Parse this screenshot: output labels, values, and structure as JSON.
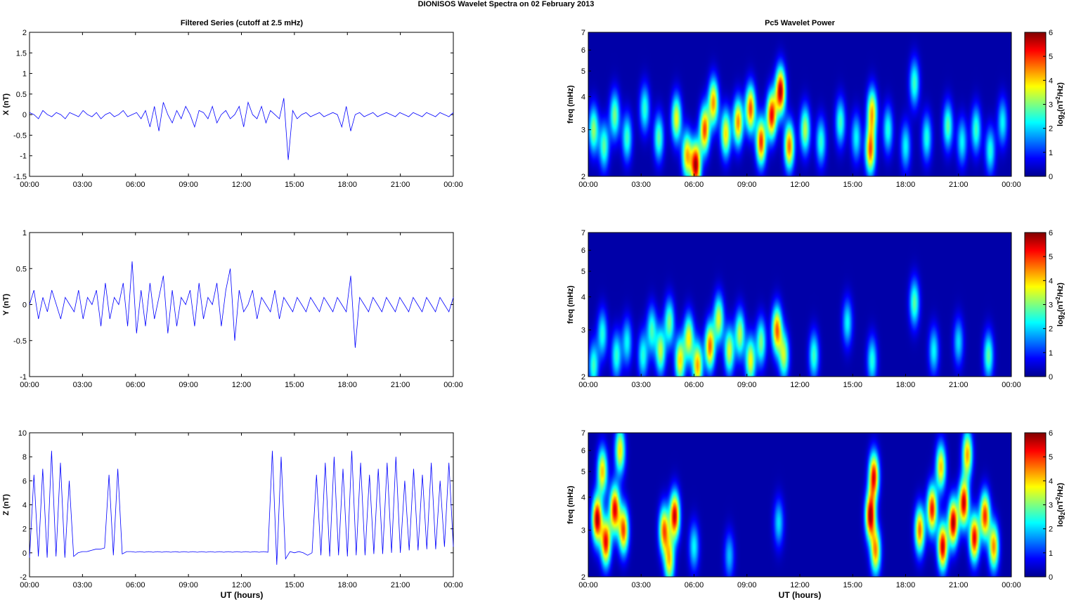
{
  "figure_title": "DIONISOS Wavelet Spectra on 02 February  2013",
  "left_title": "Filtered Series (cutoff at 2.5 mHz)",
  "right_title": "Pc5 Wavelet Power",
  "xlabel": "UT (hours)",
  "x_ticks": [
    "00:00",
    "03:00",
    "06:00",
    "09:00",
    "12:00",
    "15:00",
    "18:00",
    "21:00",
    "00:00"
  ],
  "colorbar_label": "log2(nT2/Hz)",
  "colorbar_ticks": [
    "0",
    "1",
    "2",
    "3",
    "4",
    "5",
    "6"
  ],
  "freq_label": "freq (mHz)",
  "freq_ticks": [
    "2",
    "3",
    "4",
    "5",
    "6",
    "7"
  ],
  "colors": {
    "series_line": "#0000ff",
    "spectrum_background": "#00008f"
  },
  "chart_data": [
    {
      "type": "line",
      "ylabel": "X (nT)",
      "x_range_hours": [
        0,
        24
      ],
      "ylim": [
        -1.5,
        2
      ],
      "y_ticks": [
        "2",
        "1.5",
        "1",
        "0.5",
        "0",
        "-0.5",
        "-1",
        "-1.5"
      ],
      "series": [
        {
          "values": [
            0.05,
            0.0,
            -0.1,
            0.1,
            0.0,
            -0.05,
            0.05,
            0.0,
            -0.1,
            0.05,
            0.0,
            -0.05,
            0.1,
            0.0,
            -0.05,
            0.05,
            -0.1,
            0.0,
            0.05,
            -0.05,
            0.0,
            0.1,
            -0.05,
            0.0,
            0.05,
            -0.1,
            0.1,
            -0.3,
            0.2,
            -0.4,
            0.3,
            0.0,
            -0.2,
            0.1,
            -0.1,
            0.2,
            0.0,
            -0.3,
            0.1,
            0.05,
            -0.1,
            0.2,
            -0.2,
            0.0,
            0.1,
            -0.1,
            0.0,
            0.2,
            -0.3,
            0.3,
            0.0,
            -0.1,
            0.2,
            -0.2,
            0.1,
            0.0,
            -0.1,
            0.4,
            -1.1,
            0.1,
            -0.1,
            0.0,
            0.05,
            -0.05,
            0.0,
            0.05,
            -0.05,
            0.0,
            0.05,
            0.0,
            -0.3,
            0.2,
            -0.4,
            0.0,
            0.05,
            -0.05,
            0.0,
            0.05,
            -0.05,
            0.0,
            0.05,
            0.0,
            -0.05,
            0.05,
            0.0,
            -0.05,
            0.05,
            0.0,
            -0.05,
            0.05,
            0.0,
            -0.05,
            0.05,
            0.0,
            -0.05,
            0.05
          ]
        }
      ]
    },
    {
      "type": "line",
      "ylabel": "Y (nT)",
      "x_range_hours": [
        0,
        24
      ],
      "ylim": [
        -1,
        1
      ],
      "y_ticks": [
        "1",
        "0.5",
        "0",
        "-0.5",
        "-1"
      ],
      "series": [
        {
          "values": [
            0.0,
            0.2,
            -0.2,
            0.1,
            -0.1,
            0.2,
            0.0,
            -0.2,
            0.1,
            0.0,
            -0.1,
            0.2,
            -0.2,
            0.1,
            0.0,
            0.2,
            -0.3,
            0.3,
            -0.2,
            0.1,
            0.0,
            0.3,
            -0.3,
            0.6,
            -0.4,
            0.2,
            -0.3,
            0.3,
            -0.2,
            0.1,
            0.4,
            -0.4,
            0.2,
            -0.3,
            0.1,
            0.0,
            0.2,
            -0.3,
            0.3,
            -0.2,
            0.1,
            0.0,
            0.3,
            -0.3,
            0.2,
            0.5,
            -0.5,
            0.2,
            -0.1,
            0.0,
            0.2,
            -0.2,
            0.1,
            0.0,
            -0.1,
            0.2,
            -0.2,
            0.1,
            0.0,
            -0.1,
            0.1,
            0.0,
            -0.1,
            0.1,
            0.0,
            -0.1,
            0.1,
            0.0,
            -0.1,
            0.1,
            0.0,
            -0.1,
            0.4,
            -0.6,
            0.1,
            0.0,
            -0.1,
            0.1,
            0.0,
            -0.1,
            0.1,
            0.0,
            -0.1,
            0.1,
            0.0,
            -0.1,
            0.1,
            0.0,
            -0.1,
            0.1,
            0.0,
            -0.1,
            0.1,
            0.0,
            -0.1,
            0.1
          ]
        }
      ]
    },
    {
      "type": "line",
      "ylabel": "Z (nT)",
      "x_range_hours": [
        0,
        24
      ],
      "ylim": [
        -2,
        10
      ],
      "y_ticks": [
        "10",
        "8",
        "6",
        "4",
        "2",
        "0",
        "-2"
      ],
      "series": [
        {
          "values": [
            -0.4,
            6.5,
            -0.3,
            7.0,
            -0.4,
            8.5,
            -0.3,
            7.5,
            -0.4,
            6.0,
            -0.3,
            0.0,
            0.1,
            0.1,
            0.2,
            0.3,
            0.3,
            0.4,
            6.5,
            -0.2,
            7.0,
            -0.1,
            0.1,
            0.1,
            0.05,
            0.1,
            0.05,
            0.1,
            0.05,
            0.1,
            0.05,
            0.1,
            0.05,
            0.1,
            0.05,
            0.1,
            0.05,
            0.1,
            0.05,
            0.1,
            0.05,
            0.1,
            0.05,
            0.1,
            0.05,
            0.1,
            0.05,
            0.1,
            0.05,
            0.1,
            0.05,
            0.1,
            0.05,
            0.1,
            0.05,
            8.5,
            -1.0,
            8.0,
            -0.5,
            0.1,
            0.0,
            0.1,
            0.0,
            -0.2,
            0.0,
            6.5,
            -0.2,
            7.5,
            -0.3,
            8.0,
            -0.2,
            7.0,
            -0.3,
            8.5,
            -0.2,
            7.5,
            -0.2,
            6.5,
            -0.1,
            7.0,
            -0.1,
            7.5,
            0.0,
            8.0,
            0.0,
            6.0,
            0.2,
            7.0,
            0.2,
            6.5,
            0.3,
            7.5,
            0.3,
            6.0,
            0.5,
            7.5,
            0.5
          ]
        }
      ]
    },
    {
      "type": "heatmap",
      "ylabel": "freq (mHz)",
      "x_range_hours": [
        0,
        24
      ],
      "ylim": [
        2,
        7
      ],
      "y_scale": "log",
      "color_range": [
        0,
        6
      ],
      "colormap": "jet",
      "features": [
        {
          "t": 0.3,
          "f": 3.0,
          "p": 3.2
        },
        {
          "t": 0.9,
          "f": 2.6,
          "p": 2.8
        },
        {
          "t": 1.5,
          "f": 3.4,
          "p": 3.0
        },
        {
          "t": 2.2,
          "f": 2.8,
          "p": 2.6
        },
        {
          "t": 3.2,
          "f": 3.6,
          "p": 2.5
        },
        {
          "t": 4.0,
          "f": 2.8,
          "p": 2.8
        },
        {
          "t": 5.0,
          "f": 3.3,
          "p": 3.8
        },
        {
          "t": 5.6,
          "f": 2.4,
          "p": 4.2
        },
        {
          "t": 6.1,
          "f": 2.2,
          "p": 6.0
        },
        {
          "t": 6.6,
          "f": 3.0,
          "p": 5.0
        },
        {
          "t": 7.1,
          "f": 3.8,
          "p": 4.5
        },
        {
          "t": 7.8,
          "f": 2.9,
          "p": 4.0
        },
        {
          "t": 8.5,
          "f": 3.2,
          "p": 4.6
        },
        {
          "t": 9.2,
          "f": 3.6,
          "p": 5.0
        },
        {
          "t": 9.8,
          "f": 2.7,
          "p": 5.2
        },
        {
          "t": 10.4,
          "f": 3.4,
          "p": 5.5
        },
        {
          "t": 10.9,
          "f": 4.2,
          "p": 6.0
        },
        {
          "t": 11.4,
          "f": 2.6,
          "p": 4.8
        },
        {
          "t": 12.3,
          "f": 3.0,
          "p": 3.4
        },
        {
          "t": 13.2,
          "f": 2.7,
          "p": 2.5
        },
        {
          "t": 14.3,
          "f": 3.2,
          "p": 2.6
        },
        {
          "t": 15.2,
          "f": 2.8,
          "p": 2.2
        },
        {
          "t": 16.0,
          "f": 2.5,
          "p": 4.8
        },
        {
          "t": 16.1,
          "f": 3.5,
          "p": 4.2
        },
        {
          "t": 17.0,
          "f": 3.0,
          "p": 2.4
        },
        {
          "t": 18.0,
          "f": 2.6,
          "p": 2.2
        },
        {
          "t": 18.5,
          "f": 4.5,
          "p": 2.6
        },
        {
          "t": 19.2,
          "f": 2.8,
          "p": 2.4
        },
        {
          "t": 20.4,
          "f": 3.1,
          "p": 2.8
        },
        {
          "t": 21.2,
          "f": 2.7,
          "p": 2.2
        },
        {
          "t": 22.0,
          "f": 3.0,
          "p": 2.6
        },
        {
          "t": 22.8,
          "f": 2.5,
          "p": 2.4
        },
        {
          "t": 23.5,
          "f": 3.2,
          "p": 2.2
        }
      ]
    },
    {
      "type": "heatmap",
      "ylabel": "freq (mHz)",
      "x_range_hours": [
        0,
        24
      ],
      "ylim": [
        2,
        7
      ],
      "y_scale": "log",
      "color_range": [
        0,
        6
      ],
      "colormap": "jet",
      "features": [
        {
          "t": 0.3,
          "f": 2.2,
          "p": 2.6
        },
        {
          "t": 0.8,
          "f": 2.9,
          "p": 2.4
        },
        {
          "t": 1.6,
          "f": 2.4,
          "p": 2.5
        },
        {
          "t": 2.2,
          "f": 2.7,
          "p": 2.2
        },
        {
          "t": 3.1,
          "f": 2.4,
          "p": 2.4
        },
        {
          "t": 3.6,
          "f": 3.0,
          "p": 2.6
        },
        {
          "t": 4.1,
          "f": 2.5,
          "p": 3.4
        },
        {
          "t": 4.6,
          "f": 3.2,
          "p": 3.0
        },
        {
          "t": 5.2,
          "f": 2.3,
          "p": 4.0
        },
        {
          "t": 5.7,
          "f": 2.8,
          "p": 3.8
        },
        {
          "t": 6.2,
          "f": 2.2,
          "p": 4.4
        },
        {
          "t": 6.9,
          "f": 2.6,
          "p": 4.8
        },
        {
          "t": 7.4,
          "f": 3.3,
          "p": 3.6
        },
        {
          "t": 8.0,
          "f": 2.5,
          "p": 3.6
        },
        {
          "t": 8.6,
          "f": 2.9,
          "p": 3.4
        },
        {
          "t": 9.2,
          "f": 2.3,
          "p": 3.8
        },
        {
          "t": 9.8,
          "f": 2.7,
          "p": 3.0
        },
        {
          "t": 10.7,
          "f": 3.0,
          "p": 4.8
        },
        {
          "t": 11.1,
          "f": 2.4,
          "p": 3.4
        },
        {
          "t": 12.8,
          "f": 2.4,
          "p": 2.6
        },
        {
          "t": 14.7,
          "f": 3.2,
          "p": 2.2
        },
        {
          "t": 16.1,
          "f": 2.3,
          "p": 2.4
        },
        {
          "t": 18.5,
          "f": 3.8,
          "p": 2.8
        },
        {
          "t": 19.6,
          "f": 2.5,
          "p": 2.2
        },
        {
          "t": 21.0,
          "f": 2.7,
          "p": 2.0
        },
        {
          "t": 22.7,
          "f": 2.4,
          "p": 2.8
        }
      ]
    },
    {
      "type": "heatmap",
      "ylabel": "freq (mHz)",
      "x_range_hours": [
        0,
        24
      ],
      "ylim": [
        2,
        7
      ],
      "y_scale": "log",
      "color_range": [
        0,
        6
      ],
      "colormap": "jet",
      "features": [
        {
          "t": 0.5,
          "f": 3.3,
          "p": 6.0
        },
        {
          "t": 1.0,
          "f": 2.7,
          "p": 5.5
        },
        {
          "t": 1.5,
          "f": 3.6,
          "p": 5.6
        },
        {
          "t": 2.0,
          "f": 3.0,
          "p": 5.0
        },
        {
          "t": 0.8,
          "f": 5.0,
          "p": 4.2
        },
        {
          "t": 1.8,
          "f": 6.0,
          "p": 4.0
        },
        {
          "t": 4.3,
          "f": 3.0,
          "p": 4.8
        },
        {
          "t": 4.9,
          "f": 3.4,
          "p": 5.8
        },
        {
          "t": 4.6,
          "f": 2.3,
          "p": 4.0
        },
        {
          "t": 6.0,
          "f": 2.6,
          "p": 2.2
        },
        {
          "t": 8.0,
          "f": 2.4,
          "p": 1.8
        },
        {
          "t": 10.8,
          "f": 3.2,
          "p": 2.0
        },
        {
          "t": 16.0,
          "f": 3.4,
          "p": 6.0
        },
        {
          "t": 16.2,
          "f": 4.8,
          "p": 5.5
        },
        {
          "t": 16.3,
          "f": 2.5,
          "p": 4.5
        },
        {
          "t": 18.8,
          "f": 3.0,
          "p": 4.8
        },
        {
          "t": 19.5,
          "f": 3.6,
          "p": 5.4
        },
        {
          "t": 20.1,
          "f": 2.6,
          "p": 5.8
        },
        {
          "t": 20.7,
          "f": 3.2,
          "p": 6.0
        },
        {
          "t": 21.3,
          "f": 3.8,
          "p": 5.8
        },
        {
          "t": 21.9,
          "f": 2.8,
          "p": 5.6
        },
        {
          "t": 22.5,
          "f": 3.4,
          "p": 5.2
        },
        {
          "t": 23.0,
          "f": 2.6,
          "p": 4.6
        },
        {
          "t": 20.0,
          "f": 5.2,
          "p": 4.2
        },
        {
          "t": 21.5,
          "f": 5.8,
          "p": 4.4
        }
      ]
    }
  ]
}
